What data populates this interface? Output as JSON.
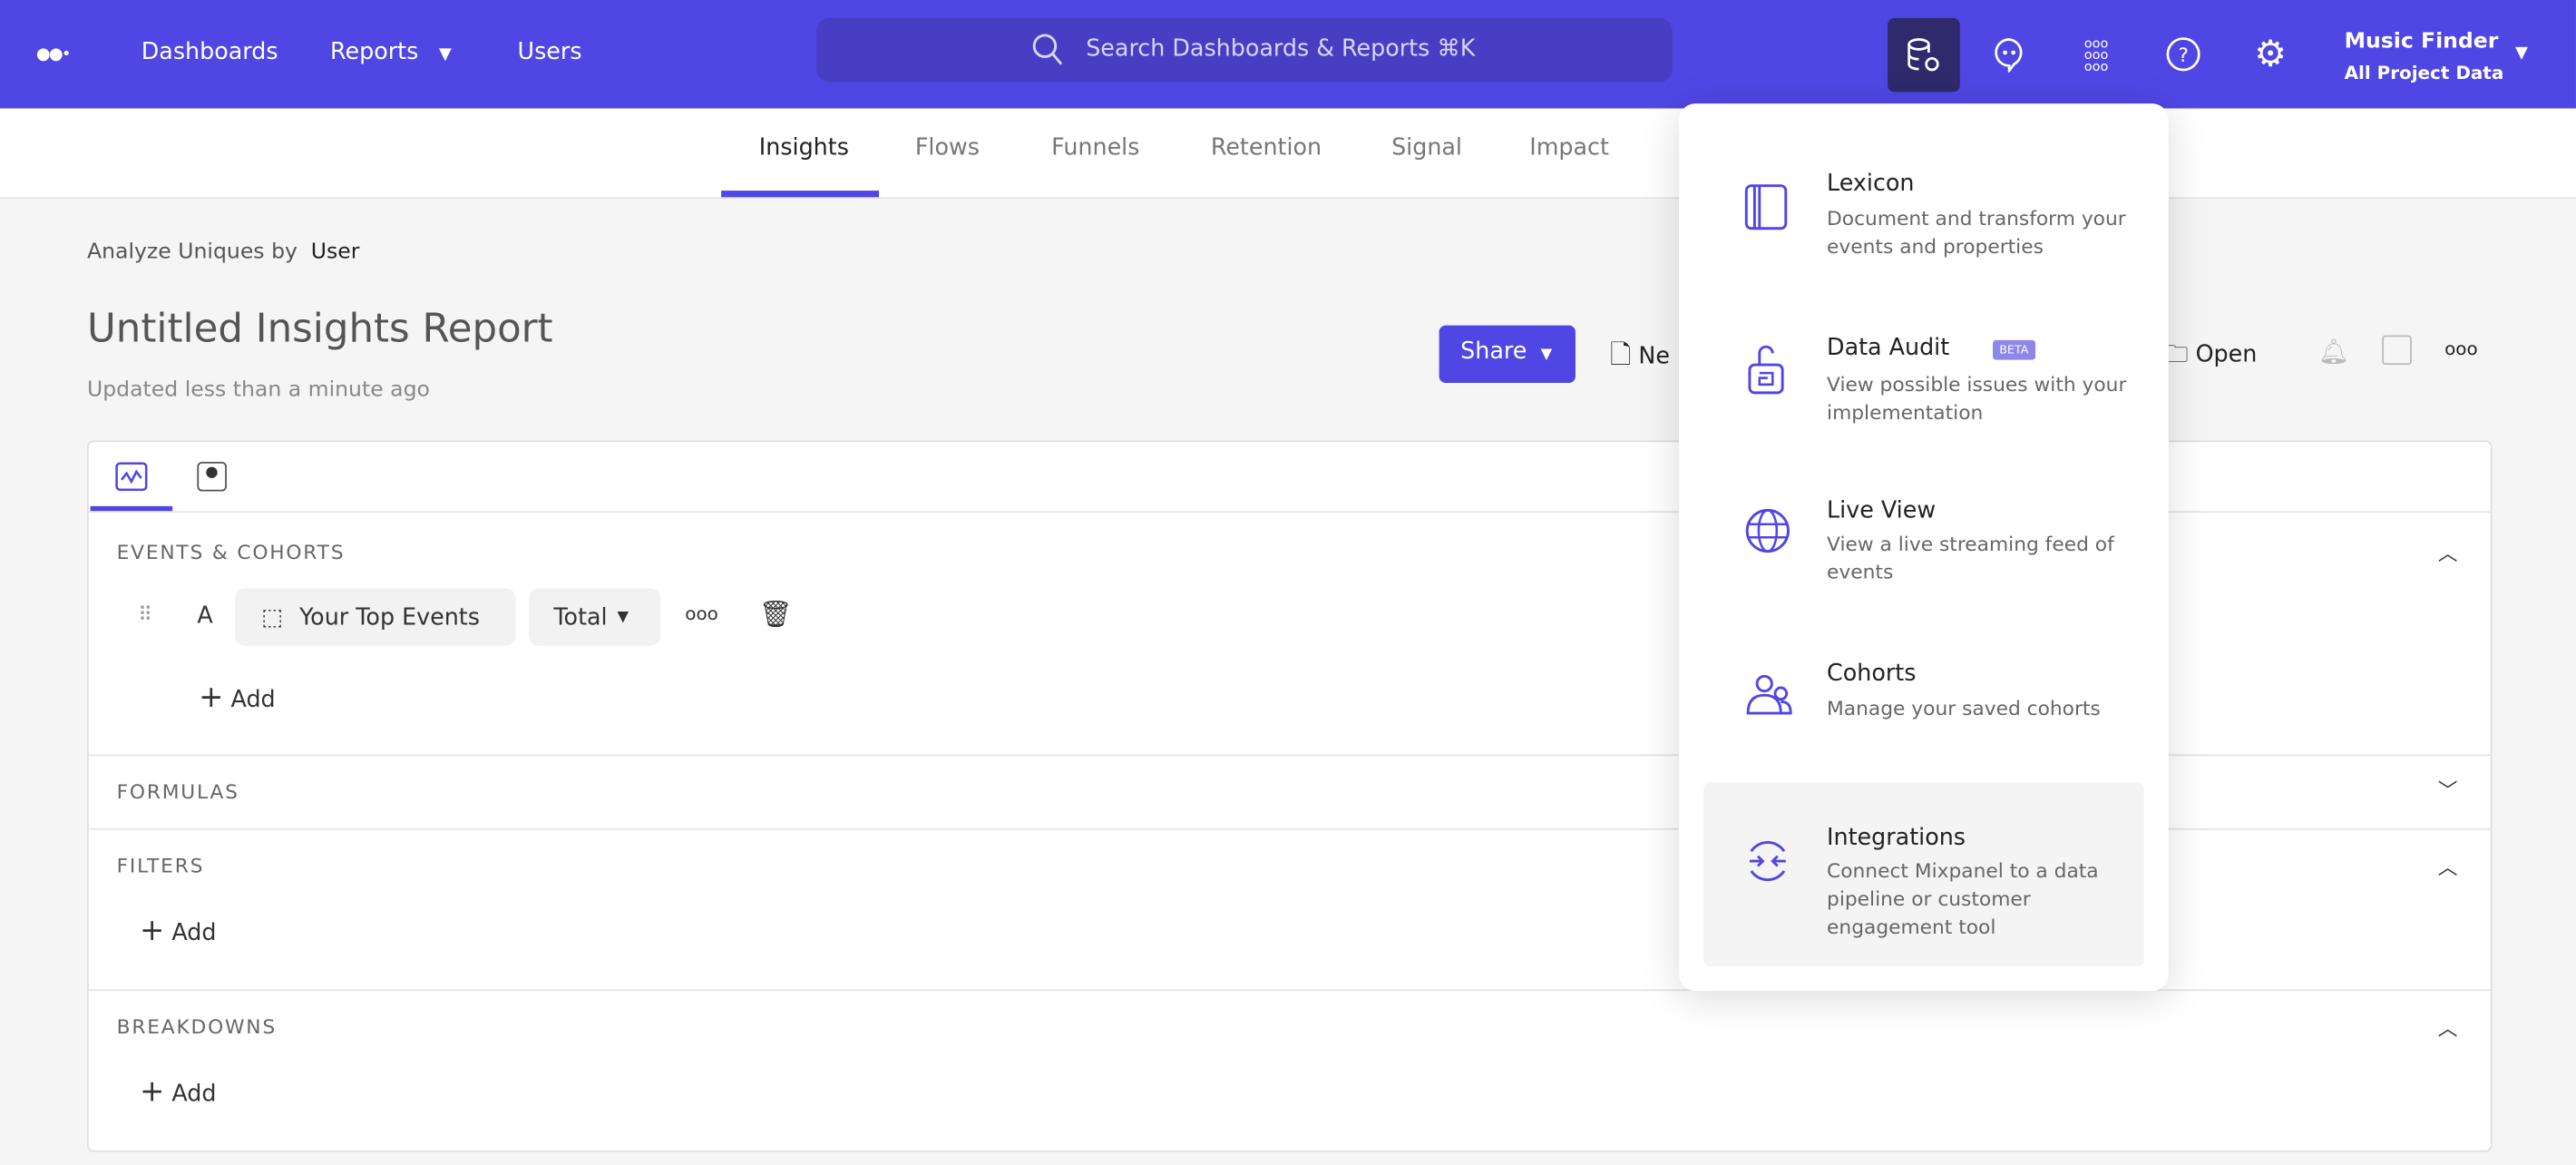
{
  "topbar": {
    "nav": [
      "Dashboards",
      "Reports",
      "Users"
    ],
    "search_placeholder": "Search Dashboards & Reports ⌘K",
    "project_name": "Music Finder",
    "project_scope": "All Project Data",
    "accent": "#5046e4"
  },
  "subnav": {
    "tabs": [
      "Insights",
      "Flows",
      "Funnels",
      "Retention",
      "Signal",
      "Impact"
    ],
    "active": "Insights"
  },
  "report": {
    "analyze_label": "Analyze Uniques by",
    "analyze_value": "User",
    "title": "Untitled Insights Report",
    "updated": "Updated less than a minute ago",
    "share": "Share",
    "new_partial": "Ne",
    "open": "Open"
  },
  "sections": {
    "events_title": "EVENTS & COHORTS",
    "row_letter": "A",
    "event": "Your Top Events",
    "measure": "Total",
    "add": "Add",
    "formulas": "FORMULAS",
    "filters": "FILTERS",
    "breakdowns": "BREAKDOWNS"
  },
  "menu": {
    "items": [
      {
        "title": "Lexicon",
        "desc": "Document and transform your events and properties",
        "icon": "book-icon"
      },
      {
        "title": "Data Audit",
        "badge": "BETA",
        "desc": "View possible issues with your implementation",
        "icon": "lock-icon"
      },
      {
        "title": "Live View",
        "desc": "View a live streaming feed of events",
        "icon": "globe-icon"
      },
      {
        "title": "Cohorts",
        "desc": "Manage your saved cohorts",
        "icon": "users-icon"
      },
      {
        "title": "Integrations",
        "desc": "Connect Mixpanel to a data pipeline or customer engagement tool",
        "icon": "integrations-icon"
      }
    ]
  }
}
